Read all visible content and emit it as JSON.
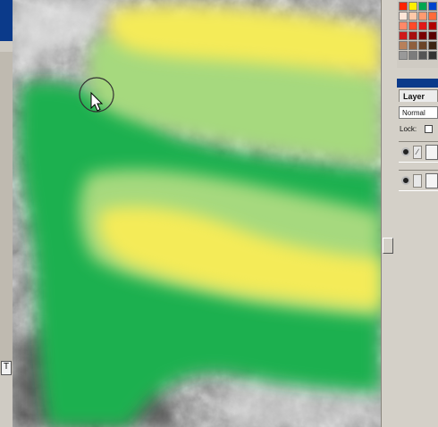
{
  "window": {
    "left_marker_glyph": "T"
  },
  "canvas": {
    "content": "hillshade terrain with green and yellow paint strokes",
    "colors": {
      "terrain": "#9a9a9a",
      "green": "#1db04f",
      "light_green": "#a6d97e",
      "yellow": "#f4eb59"
    },
    "cursor": "arrow-with-brush-circle"
  },
  "swatches": {
    "colors": [
      "#ff2200",
      "#ffee00",
      "#00a651",
      "#0044cc",
      "#ffe6d8",
      "#ffc8a8",
      "#ff9a70",
      "#ff6a3a",
      "#ff8868",
      "#ff4a2a",
      "#e01818",
      "#b00000",
      "#d01a1a",
      "#a80f0f",
      "#7a0000",
      "#5a0000",
      "#b8805a",
      "#8f5f3d",
      "#6b4428",
      "#3d2514",
      "#999999",
      "#7c7c7c",
      "#555555",
      "#333333"
    ]
  },
  "layers_panel": {
    "tab_label": "Layer",
    "blend_mode": "Normal",
    "lock_label": "Lock:",
    "icons": [
      "eye-icon",
      "brush-icon"
    ]
  }
}
